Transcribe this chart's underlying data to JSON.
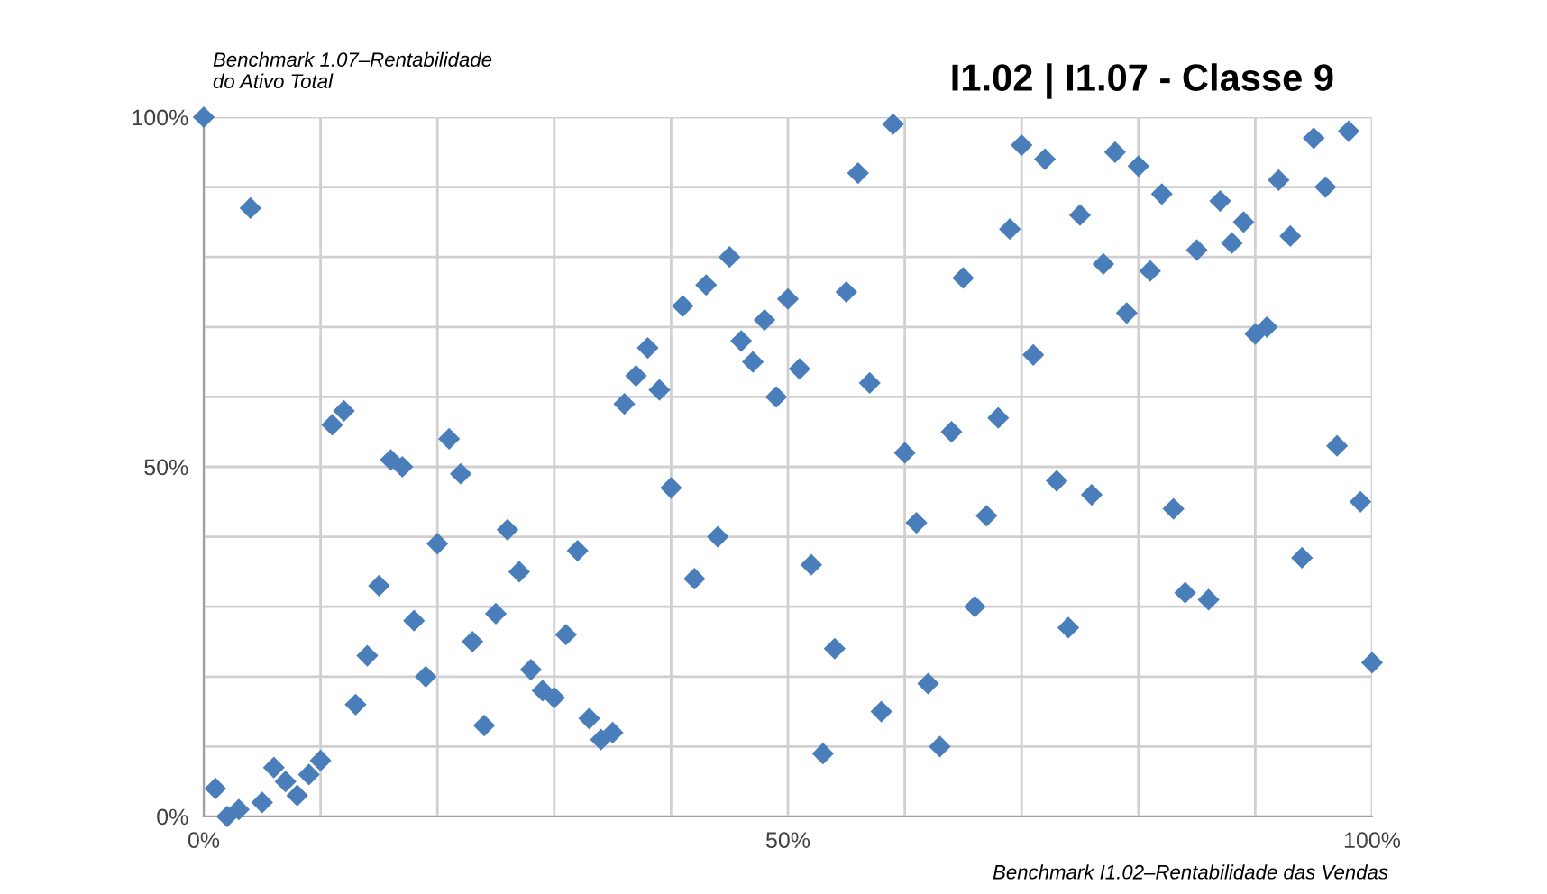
{
  "chart_data": {
    "type": "scatter",
    "title": "I1.02 | I1.07 - Classe 9",
    "ylabel": "Benchmark 1.07–Rentabilidade\ndo Ativo Total",
    "xlabel": "Benchmark I1.02–Rentabilidade das Vendas",
    "x": [
      0,
      1,
      2,
      3,
      4,
      5,
      6,
      7,
      8,
      9,
      10,
      11,
      12,
      13,
      14,
      15,
      16,
      17,
      18,
      19,
      20,
      21,
      22,
      23,
      24,
      25,
      26,
      27,
      28,
      29,
      30,
      31,
      32,
      33,
      34,
      35,
      36,
      37,
      38,
      39,
      40,
      41,
      42,
      43,
      44,
      45,
      46,
      47,
      48,
      49,
      50,
      51,
      52,
      53,
      54,
      55,
      56,
      57,
      58,
      59,
      60,
      61,
      62,
      63,
      64,
      65,
      66,
      67,
      68,
      69,
      70,
      71,
      72,
      73,
      74,
      75,
      76,
      77,
      78,
      79,
      80,
      81,
      82,
      83,
      84,
      85,
      86,
      87,
      88,
      89,
      90,
      91,
      92,
      93,
      94,
      95,
      96,
      97,
      98,
      99,
      100
    ],
    "series": [
      {
        "color": "#4a7ebb",
        "values": [
          100,
          4,
          0,
          1,
          87,
          2,
          7,
          5,
          3,
          6,
          8,
          56,
          58,
          16,
          23,
          33,
          51,
          50,
          28,
          20,
          39,
          54,
          49,
          25,
          13,
          29,
          41,
          35,
          21,
          18,
          17,
          26,
          38,
          14,
          11,
          12,
          59,
          63,
          67,
          61,
          47,
          73,
          34,
          76,
          40,
          80,
          68,
          65,
          71,
          60,
          74,
          64,
          36,
          9,
          24,
          75,
          92,
          62,
          15,
          99,
          52,
          42,
          19,
          10,
          55,
          77,
          30,
          43,
          57,
          84,
          96,
          66,
          94,
          48,
          27,
          86,
          46,
          79,
          95,
          72,
          93,
          78,
          89,
          44,
          32,
          81,
          31,
          88,
          82,
          85,
          69,
          70,
          91,
          83,
          37,
          97,
          90,
          53,
          98,
          45,
          22
        ]
      }
    ],
    "xlim": [
      0,
      100
    ],
    "ylim": [
      0,
      100
    ],
    "xticks": [
      {
        "value": 0,
        "label": "0%"
      },
      {
        "value": 10,
        "label": null
      },
      {
        "value": 20,
        "label": null
      },
      {
        "value": 30,
        "label": null
      },
      {
        "value": 40,
        "label": null
      },
      {
        "value": 50,
        "label": "50%"
      },
      {
        "value": 60,
        "label": null
      },
      {
        "value": 70,
        "label": null
      },
      {
        "value": 80,
        "label": null
      },
      {
        "value": 90,
        "label": null
      },
      {
        "value": 100,
        "label": "100%"
      }
    ],
    "yticks": [
      {
        "value": 0,
        "label": "0%"
      },
      {
        "value": 10,
        "label": null
      },
      {
        "value": 20,
        "label": null
      },
      {
        "value": 30,
        "label": null
      },
      {
        "value": 40,
        "label": null
      },
      {
        "value": 50,
        "label": "50%"
      },
      {
        "value": 60,
        "label": null
      },
      {
        "value": 70,
        "label": null
      },
      {
        "value": 80,
        "label": null
      },
      {
        "value": 90,
        "label": null
      },
      {
        "value": 100,
        "label": "100%"
      }
    ],
    "grid": true,
    "marker": "diamond",
    "legend": false
  }
}
